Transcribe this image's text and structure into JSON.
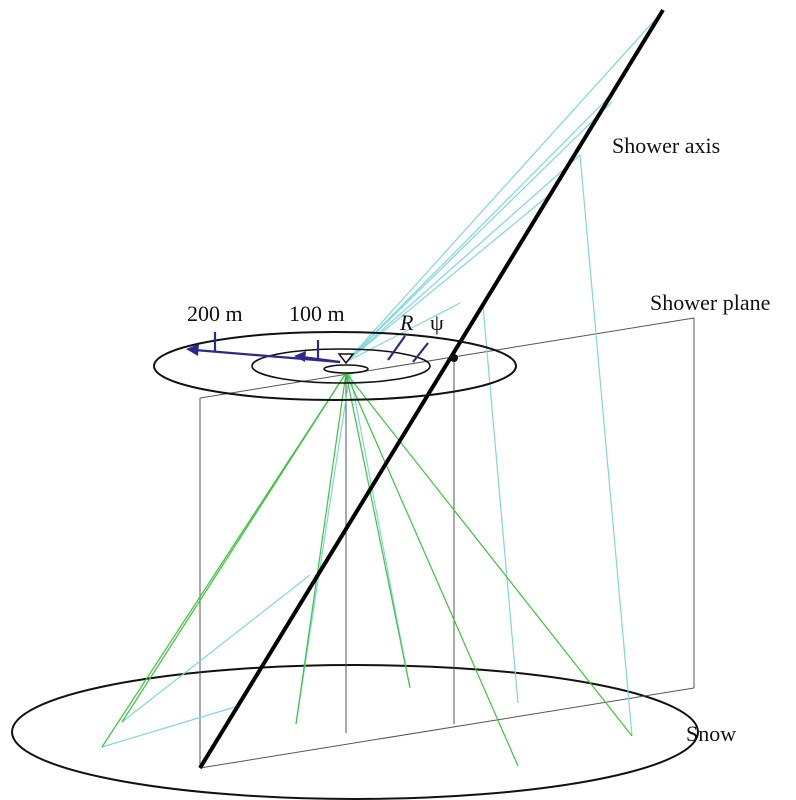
{
  "labels": {
    "shower_axis": "Shower axis",
    "shower_plane": "Shower plane",
    "snow": "Snow",
    "r200": "200 m",
    "r100": "100 m",
    "R": "R",
    "psi": "ψ"
  },
  "colors": {
    "axis": "#000000",
    "outline": "#111111",
    "plane": "#555555",
    "cyan_rays": "#7fd6e0",
    "green_rays": "#3cc43c",
    "markers": "#2b2a8c"
  }
}
